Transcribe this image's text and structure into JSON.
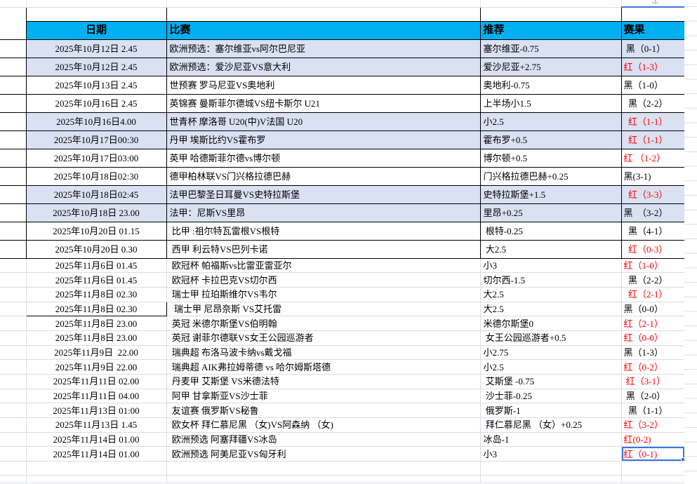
{
  "header": {
    "date": "日期",
    "match": "比赛",
    "tip": "推荐",
    "result": "赛果"
  },
  "colors": {
    "header_bg": "#00B0F0",
    "row_shade_bg": "#D9E1F2",
    "result_red": "#FF0000",
    "selection_blue": "#3B76E1",
    "grid_line": "#D9DDE4",
    "table_border": "#000000"
  },
  "selection": {
    "fill_handle": true,
    "selected_cell": "result of last row"
  },
  "rows": [
    {
      "date": "2025年10月12日 2.45",
      "match": "欧洲预选：塞尔维亚vs阿尔巴尼亚",
      "tip": "塞尔维亚-0.75",
      "result": " 黑（0-1）",
      "red": false,
      "shade": true,
      "bordered": true
    },
    {
      "date": "2025年10月12日 2.45",
      "match": "欧洲预选：爱沙尼亚VS意大利",
      "tip": "爱沙尼亚+2.75",
      "result": "红（1-3）",
      "red": true,
      "shade": true,
      "bordered": true
    },
    {
      "date": "2025年10月13日 2.45",
      "match": "世预赛 罗马尼亚VS奥地利",
      "tip": "奥地利-0.75",
      "result": "黑（1-0）",
      "red": false,
      "shade": false,
      "bordered": true
    },
    {
      "date": "2025年10月16日 2.45",
      "match": "英锦赛 曼斯菲尔德城VS纽卡斯尔 U21",
      "tip": "上半场小1.5",
      "result": "  黑（2-2）",
      "red": false,
      "shade": false,
      "bordered": true
    },
    {
      "date": "2025年10月16日4.00",
      "match": "世青杯 摩洛哥 U20(中)V法国 U20",
      "tip": "小2.5",
      "result": "  红（1-1）",
      "red": true,
      "shade": true,
      "bordered": true
    },
    {
      "date": "2025年10月17日00:30",
      "match": "丹甲 埃斯比约VS霍布罗",
      "tip": "霍布罗+0.5",
      "result": "  红（1-1）",
      "red": true,
      "shade": true,
      "bordered": true
    },
    {
      "date": "2025年10月17日03:00",
      "match": "英甲 哈德斯菲尔德vs博尔顿",
      "tip": "博尔顿+0.5",
      "result": "红 （1-2）",
      "red": true,
      "shade": false,
      "bordered": true
    },
    {
      "date": "2025年10月18日02:30",
      "match": "德甲柏林联VS门兴格拉德巴赫",
      "tip": "门兴格拉德巴赫+0.25",
      "result": "黑(3-1)",
      "red": false,
      "shade": false,
      "bordered": true
    },
    {
      "date": "2025年10月18日02:45",
      "match": "法甲巴黎圣日耳曼VS史特拉斯堡",
      "tip": "史特拉斯堡+1.5",
      "result": "  红（3-3）",
      "red": true,
      "shade": true,
      "bordered": true
    },
    {
      "date": "2025年10月18日 23.00",
      "match": "法甲：尼斯VS里昂",
      "tip": "里昂+0.25",
      "result": "黑　（3-2）",
      "red": false,
      "shade": true,
      "bordered": true
    },
    {
      "date": "2025年10月20日 01.15",
      "match": " 比甲 :祖尔特瓦雷根VS根特",
      "tip": " 根特-0.25",
      "result": "  黑（4-1）",
      "red": false,
      "shade": false,
      "bordered": true
    },
    {
      "date": "2025年10月20日 0.30",
      "match": " 西甲 利云特VS巴列卡诺",
      "tip": " 大2.5",
      "result": "  红（0-3）",
      "red": true,
      "shade": false,
      "bordered": true
    },
    {
      "date": "2025年11月6日 01.45",
      "match": " 欧冠杯 帕福斯vs比雷亚雷亚尔",
      "tip": "小3",
      "result": "红（1-0）",
      "red": true,
      "shade": false,
      "bordered": false
    },
    {
      "date": "2025年11月6日 01.45",
      "match": " 欧冠杯 卡拉巴克VS切尔西",
      "tip": "切尔西-1.5",
      "result": "  黑（2-2）",
      "red": false,
      "shade": false,
      "bordered": false
    },
    {
      "date": "2025年11月8日 02.30",
      "match": " 瑞士甲 拉珀斯维尔VS韦尔",
      "tip": "大2.5",
      "result": "  红（2-1）",
      "red": true,
      "shade": false,
      "bordered": false
    },
    {
      "date": "2025年11月8日 02.30",
      "match": "  瑞士甲 尼昂奈斯 VS艾托雷",
      "tip": "大2.5",
      "result": "黑（0-0）",
      "red": false,
      "shade": false,
      "bordered": false,
      "date_boxed": true
    },
    {
      "date": "2025年11月8日 23.00",
      "match": " 英冠 米德尔斯堡VS伯明翰",
      "tip": "米德尔斯堡0",
      "result": "红（2-1）",
      "red": true,
      "shade": false,
      "bordered": false
    },
    {
      "date": "2025年11月8日 23.00",
      "match": " 英冠 谢菲尔德联VS女王公园巡游者",
      "tip": " 女王公园巡游者+0.5",
      "result": "红（0-0）",
      "red": true,
      "shade": false,
      "bordered": false
    },
    {
      "date": "2025年11月9日  22.00",
      "match": " 瑞典超 布洛马波卡纳vs戴戈福",
      "tip": "小2.75",
      "result": "黑（1-3）",
      "red": false,
      "shade": false,
      "bordered": false
    },
    {
      "date": "2025年11月9日 22.00",
      "match": " 瑞典超 AIK弗拉姆蒂德 vs 哈尔姆斯塔德",
      "tip": "小2.5",
      "result": "红（0-2）",
      "red": true,
      "shade": false,
      "bordered": false
    },
    {
      "date": "2025年11月11日 02.00",
      "match": " 丹麦甲 艾斯堡 VS米德法特",
      "tip": " 艾斯堡 -0.75",
      "result": " 红（3-1）",
      "red": true,
      "shade": false,
      "bordered": false
    },
    {
      "date": "2025年11月11日 04.00",
      "match": " 阿甲 甘拿斯亚VS沙士菲",
      "tip": " 沙士菲-0.25",
      "result": " 黑（2-0）",
      "red": false,
      "shade": false,
      "bordered": false
    },
    {
      "date": "2025年11月13日 01:00",
      "match": " 友谊赛 俄罗斯VS秘鲁",
      "tip": " 俄罗斯-1",
      "result": "  黑（1-1）",
      "red": false,
      "shade": false,
      "bordered": false
    },
    {
      "date": "2025年11月13日 1.45",
      "match": " 欧女杯 拜仁慕尼黑 （女)VS阿森纳 （女)",
      "tip": " 拜仁慕尼黑 （女）+0.25",
      "result": "红（3-2）",
      "red": true,
      "shade": false,
      "bordered": false
    },
    {
      "date": "2025年11月14日 01.00",
      "match": " 欧洲预选 阿塞拜疆VS冰岛",
      "tip": "冰岛-1",
      "result": "红(0-2)",
      "red": true,
      "shade": false,
      "bordered": false
    },
    {
      "date": "2025年11月14日 01.00",
      "match": " 欧洲预选 阿美尼亚VS匈牙利",
      "tip": "小3",
      "result": "红（0-1)",
      "red": true,
      "shade": false,
      "bordered": false,
      "selected": true
    }
  ]
}
